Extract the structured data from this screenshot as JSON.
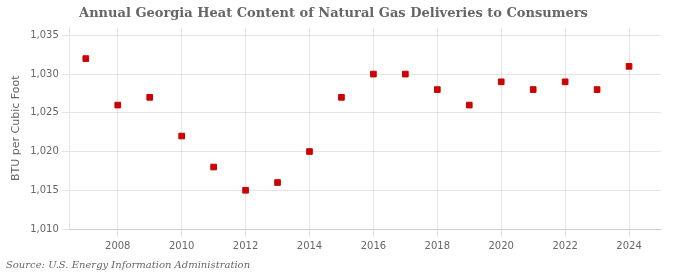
{
  "chart_data": {
    "type": "scatter",
    "title": "Annual Georgia Heat Content of Natural Gas Deliveries to Consumers",
    "ylabel": "BTU per Cubic Foot",
    "annotation": "Source: U.S. Energy Information Administration",
    "x": [
      2007,
      2008,
      2009,
      2010,
      2011,
      2012,
      2013,
      2014,
      2015,
      2016,
      2017,
      2018,
      2019,
      2020,
      2021,
      2022,
      2023,
      2024
    ],
    "values": [
      1032,
      1026,
      1027,
      1022,
      1018,
      1015,
      1016,
      1020,
      1027,
      1030,
      1030,
      1028,
      1026,
      1029,
      1028,
      1029,
      1028,
      1031
    ],
    "color": "#cc0000",
    "marker": "square",
    "xlim": [
      2006.5,
      2025.0
    ],
    "xticks": [
      2008,
      2010,
      2012,
      2014,
      2016,
      2018,
      2020,
      2022,
      2024
    ],
    "ylim": [
      1010,
      1036
    ],
    "yticks": [
      {
        "value": 1010,
        "label": "1,010"
      },
      {
        "value": 1015,
        "label": "1,015"
      },
      {
        "value": 1020,
        "label": "1,020"
      },
      {
        "value": 1025,
        "label": "1,025"
      },
      {
        "value": 1030,
        "label": "1,030"
      },
      {
        "value": 1035,
        "label": "1,035"
      }
    ],
    "grid": true
  }
}
